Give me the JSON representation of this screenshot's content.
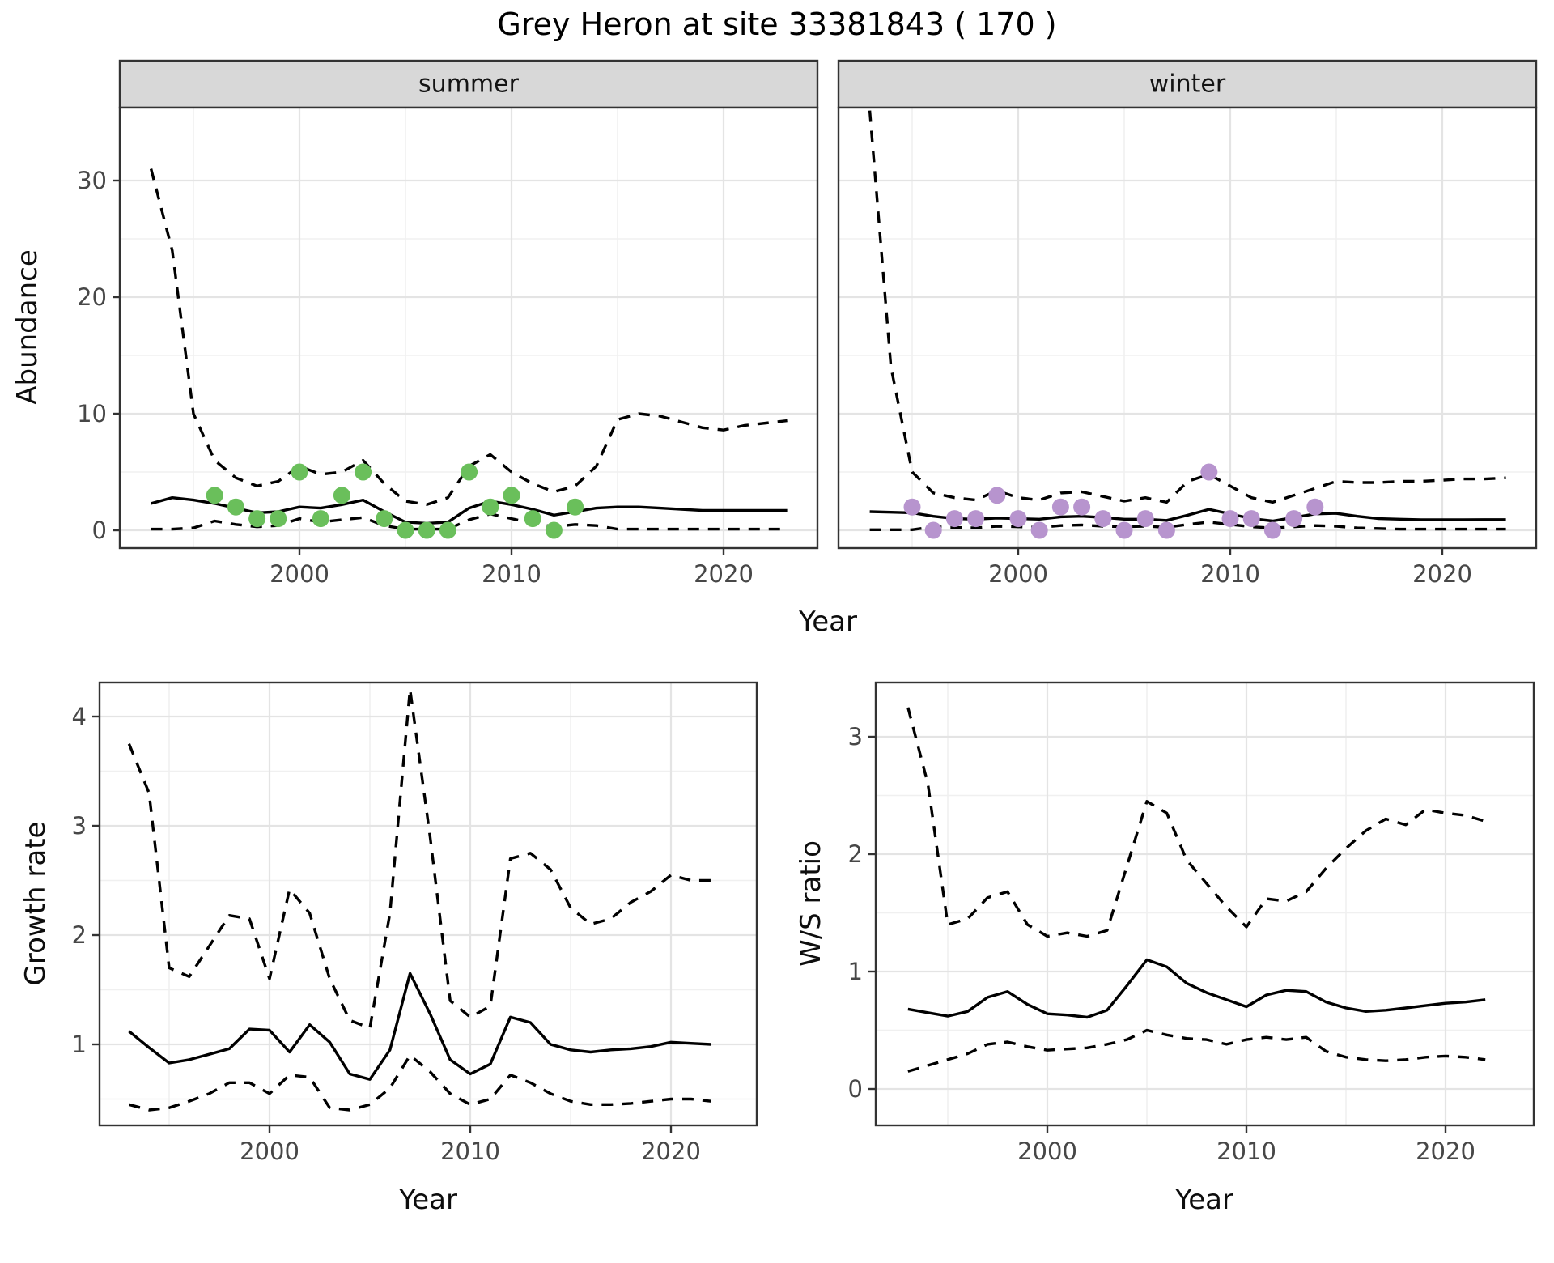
{
  "title": "Grey Heron at site 33381843 ( 170 )",
  "colors": {
    "observed_summer": "#6abf5b",
    "observed_winter": "#b794ce",
    "line": "#000000",
    "strip_fill": "#d8d8d8",
    "panel_border": "#333333",
    "grid_major": "#e4e4e4",
    "grid_minor": "#f0f0f0",
    "tick_text": "#474747"
  },
  "chart_data": [
    {
      "id": "abundance",
      "type": "line",
      "xlabel": "Year",
      "ylabel": "Abundance",
      "x_years": [
        1993,
        1994,
        1995,
        1996,
        1997,
        1998,
        1999,
        2000,
        2001,
        2002,
        2003,
        2004,
        2005,
        2006,
        2007,
        2008,
        2009,
        2010,
        2011,
        2012,
        2013,
        2014,
        2015,
        2016,
        2017,
        2018,
        2019,
        2020,
        2021,
        2022,
        2023
      ],
      "xlim": [
        1991.5,
        2024.5
      ],
      "ylim": [
        -1.5,
        34.5
      ],
      "xticks": [
        2000,
        2010,
        2020
      ],
      "xticks_minor": [
        1995,
        2005,
        2015
      ],
      "yticks": [
        0,
        10,
        20,
        30
      ],
      "yticks_minor": [
        5,
        15,
        25
      ],
      "grid": true,
      "legend": "none",
      "series_styles": [
        "mean (solid)",
        "upper 95% CI (dashed)",
        "lower 95% CI (dashed)",
        "observed counts (points)"
      ],
      "facets": [
        {
          "label": "summer",
          "point_color": "#6abf5b",
          "mean": [
            2.3,
            2.8,
            2.6,
            2.3,
            1.9,
            1.5,
            1.6,
            2.0,
            1.9,
            2.2,
            2.6,
            1.6,
            0.7,
            0.6,
            0.7,
            1.9,
            2.5,
            2.2,
            1.8,
            1.3,
            1.6,
            1.9,
            2.0,
            2.0,
            1.9,
            1.8,
            1.7,
            1.7,
            1.7,
            1.7,
            1.7
          ],
          "upper": [
            31,
            24,
            10,
            6,
            4.5,
            3.8,
            4.2,
            5.5,
            4.8,
            5.0,
            6.0,
            4.0,
            2.5,
            2.2,
            2.8,
            5.5,
            6.5,
            5.0,
            4.0,
            3.3,
            3.8,
            5.5,
            9.5,
            10,
            9.8,
            9.3,
            8.8,
            8.6,
            9.0,
            9.2,
            9.4
          ],
          "lower": [
            0.1,
            0.1,
            0.2,
            0.8,
            0.5,
            0.3,
            0.4,
            1.0,
            0.7,
            0.9,
            1.1,
            0.4,
            0.1,
            0.1,
            0.1,
            0.9,
            1.4,
            1.0,
            0.6,
            0.3,
            0.5,
            0.4,
            0.1,
            0.1,
            0.1,
            0.1,
            0.1,
            0.1,
            0.1,
            0.1,
            0.1
          ],
          "observed": {
            "years": [
              1996,
              1997,
              1998,
              1999,
              2000,
              2001,
              2002,
              2003,
              2004,
              2005,
              2006,
              2007,
              2008,
              2009,
              2010,
              2011,
              2012,
              2013
            ],
            "values": [
              3,
              2,
              1,
              1,
              5,
              1,
              3,
              5,
              1,
              0,
              0,
              0,
              5,
              2,
              3,
              1,
              0,
              2
            ]
          }
        },
        {
          "label": "winter",
          "point_color": "#b794ce",
          "mean": [
            1.6,
            1.55,
            1.5,
            1.2,
            1.0,
            0.95,
            1.05,
            1.0,
            0.95,
            1.15,
            1.2,
            1.1,
            0.95,
            0.95,
            0.85,
            1.3,
            1.8,
            1.4,
            1.0,
            0.8,
            1.1,
            1.4,
            1.45,
            1.2,
            1.0,
            0.95,
            0.9,
            0.9,
            0.9,
            0.92,
            0.92
          ],
          "upper": [
            36,
            14,
            5.0,
            3.2,
            2.8,
            2.6,
            3.4,
            2.8,
            2.6,
            3.2,
            3.3,
            2.9,
            2.5,
            2.8,
            2.4,
            4.2,
            4.8,
            3.8,
            2.8,
            2.4,
            3.0,
            3.6,
            4.2,
            4.1,
            4.1,
            4.2,
            4.2,
            4.3,
            4.4,
            4.4,
            4.5
          ],
          "lower": [
            0.05,
            0.05,
            0.05,
            0.3,
            0.25,
            0.2,
            0.35,
            0.3,
            0.25,
            0.4,
            0.45,
            0.35,
            0.3,
            0.35,
            0.25,
            0.5,
            0.7,
            0.5,
            0.3,
            0.2,
            0.3,
            0.4,
            0.35,
            0.2,
            0.15,
            0.1,
            0.1,
            0.1,
            0.1,
            0.1,
            0.1
          ],
          "observed": {
            "years": [
              1995,
              1996,
              1997,
              1998,
              1999,
              2000,
              2001,
              2002,
              2003,
              2004,
              2005,
              2006,
              2007,
              2009,
              2010,
              2011,
              2012,
              2013,
              2014
            ],
            "values": [
              2,
              0,
              1,
              1,
              3,
              1,
              0,
              2,
              2,
              1,
              0,
              1,
              0,
              5,
              1,
              1,
              0,
              1,
              2
            ]
          }
        }
      ]
    },
    {
      "id": "growth_rate",
      "type": "line",
      "xlabel": "Year",
      "ylabel": "Growth rate",
      "x_years": [
        1993,
        1994,
        1995,
        1996,
        1997,
        1998,
        1999,
        2000,
        2001,
        2002,
        2003,
        2004,
        2005,
        2006,
        2007,
        2008,
        2009,
        2010,
        2011,
        2012,
        2013,
        2014,
        2015,
        2016,
        2017,
        2018,
        2019,
        2020,
        2021,
        2022
      ],
      "xlim": [
        1991.5,
        2024.2
      ],
      "ylim": [
        0.25,
        4.4
      ],
      "xticks": [
        2000,
        2010,
        2020
      ],
      "xticks_minor": [
        1995,
        2005,
        2015
      ],
      "yticks": [
        1,
        2,
        3,
        4
      ],
      "yticks_minor": [
        0.5,
        1.5,
        2.5,
        3.5
      ],
      "grid": true,
      "legend": "none",
      "mean": [
        1.12,
        0.97,
        0.83,
        0.86,
        0.91,
        0.96,
        1.14,
        1.13,
        0.93,
        1.18,
        1.02,
        0.73,
        0.68,
        0.95,
        1.65,
        1.28,
        0.86,
        0.73,
        0.82,
        1.25,
        1.2,
        1.0,
        0.95,
        0.93,
        0.95,
        0.96,
        0.98,
        1.02,
        1.01,
        1.0
      ],
      "upper": [
        3.75,
        3.3,
        1.7,
        1.62,
        1.9,
        2.18,
        2.15,
        1.6,
        2.42,
        2.2,
        1.6,
        1.22,
        1.15,
        2.2,
        4.25,
        2.9,
        1.4,
        1.25,
        1.35,
        2.7,
        2.75,
        2.6,
        2.25,
        2.1,
        2.15,
        2.3,
        2.4,
        2.55,
        2.5,
        2.5
      ],
      "lower": [
        0.45,
        0.4,
        0.42,
        0.48,
        0.55,
        0.65,
        0.65,
        0.55,
        0.72,
        0.7,
        0.42,
        0.4,
        0.45,
        0.6,
        0.9,
        0.75,
        0.55,
        0.45,
        0.5,
        0.72,
        0.65,
        0.55,
        0.48,
        0.45,
        0.45,
        0.46,
        0.48,
        0.5,
        0.5,
        0.48
      ]
    },
    {
      "id": "ws_ratio",
      "type": "line",
      "xlabel": "Year",
      "ylabel": "W/S ratio",
      "x_years": [
        1993,
        1994,
        1995,
        1996,
        1997,
        1998,
        1999,
        2000,
        2001,
        2002,
        2003,
        2004,
        2005,
        2006,
        2007,
        2008,
        2009,
        2010,
        2011,
        2012,
        2013,
        2014,
        2015,
        2016,
        2017,
        2018,
        2019,
        2020,
        2021,
        2022
      ],
      "xlim": [
        1991.5,
        2024.5
      ],
      "ylim": [
        -0.05,
        3.45
      ],
      "xticks": [
        2000,
        2010,
        2020
      ],
      "xticks_minor": [
        1995,
        2005,
        2015
      ],
      "yticks": [
        0,
        1,
        2,
        3
      ],
      "yticks_minor": [
        0.5,
        1.5,
        2.5
      ],
      "grid": true,
      "legend": "none",
      "mean": [
        0.68,
        0.65,
        0.62,
        0.66,
        0.78,
        0.83,
        0.72,
        0.64,
        0.63,
        0.61,
        0.67,
        0.88,
        1.1,
        1.04,
        0.9,
        0.82,
        0.76,
        0.7,
        0.8,
        0.84,
        0.83,
        0.74,
        0.69,
        0.66,
        0.67,
        0.69,
        0.71,
        0.73,
        0.74,
        0.76
      ],
      "upper": [
        3.25,
        2.6,
        1.4,
        1.45,
        1.63,
        1.68,
        1.4,
        1.3,
        1.33,
        1.3,
        1.35,
        1.9,
        2.45,
        2.35,
        1.95,
        1.75,
        1.55,
        1.38,
        1.62,
        1.6,
        1.68,
        1.88,
        2.05,
        2.2,
        2.3,
        2.25,
        2.38,
        2.35,
        2.33,
        2.28
      ],
      "lower": [
        0.15,
        0.2,
        0.25,
        0.3,
        0.38,
        0.4,
        0.36,
        0.33,
        0.34,
        0.35,
        0.38,
        0.42,
        0.5,
        0.46,
        0.43,
        0.42,
        0.38,
        0.42,
        0.44,
        0.42,
        0.44,
        0.32,
        0.27,
        0.25,
        0.24,
        0.25,
        0.27,
        0.28,
        0.27,
        0.25
      ]
    }
  ]
}
